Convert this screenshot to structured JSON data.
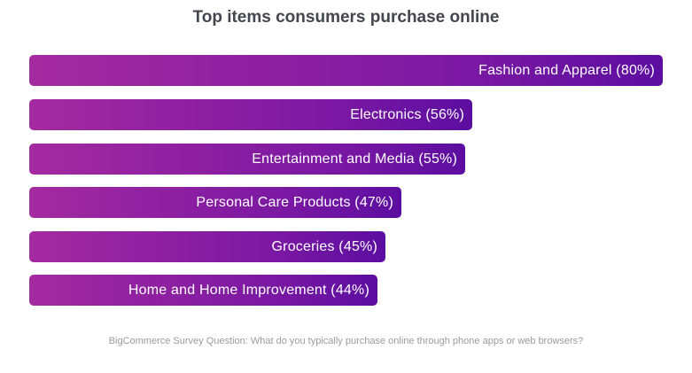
{
  "chart_data": {
    "type": "bar",
    "orientation": "horizontal",
    "title": "Top items consumers purchase online",
    "categories": [
      "Fashion and Apparel",
      "Electronics",
      "Entertainment and Media",
      "Personal Care Products",
      "Groceries",
      "Home and Home Improvement"
    ],
    "values": [
      80,
      56,
      55,
      47,
      45,
      44
    ],
    "unit": "%",
    "labels": [
      "Fashion and Apparel (80%)",
      "Electronics (56%)",
      "Entertainment and Media (55%)",
      "Personal Care Products (47%)",
      "Groceries (45%)",
      "Home and Home Improvement (44%)"
    ],
    "xlabel": "",
    "ylabel": "",
    "grid": false,
    "legend": null,
    "colors": {
      "bar_start": "#a42a9f",
      "bar_end": "#5c0ea0",
      "title": "#44464f",
      "footnote": "#9a9ba0"
    },
    "footnote": "BigCommerce Survey Question: What do you typically purchase online through phone apps or web browsers?"
  }
}
